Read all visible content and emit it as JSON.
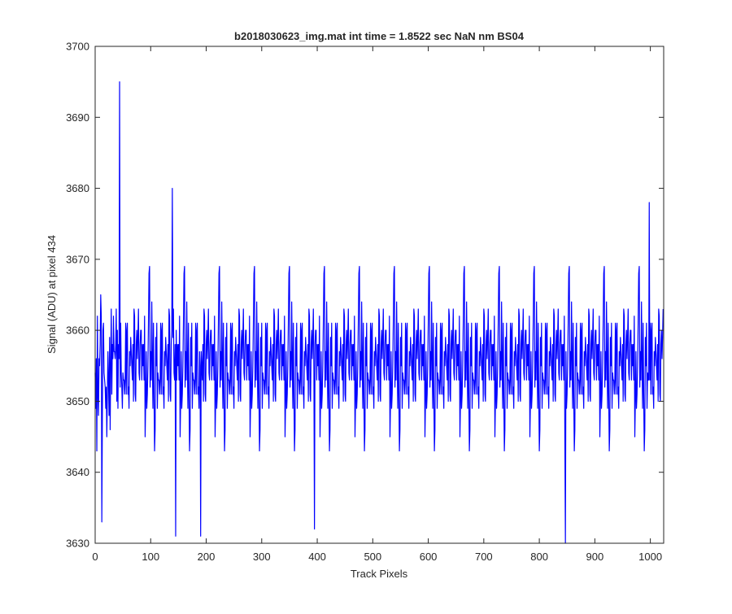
{
  "chart_data": {
    "type": "line",
    "title": "b2018030623_img.mat int time = 1.8522 sec  NaN nm BS04",
    "xlabel": "Track Pixels",
    "ylabel": "Signal (ADU) at pixel 434",
    "xlim": [
      0,
      1024
    ],
    "ylim": [
      3630,
      3700
    ],
    "xticks": [
      0,
      100,
      200,
      300,
      400,
      500,
      600,
      700,
      800,
      900,
      1000
    ],
    "yticks": [
      3630,
      3640,
      3650,
      3660,
      3670,
      3680,
      3690,
      3700
    ],
    "grid": false,
    "line_color": "#0000ff",
    "series_summary": {
      "points": 1024,
      "mean": 3655,
      "typical_range": [
        3638,
        3673
      ],
      "extremes": [
        {
          "x": 44,
          "y": 3695
        },
        {
          "x": 139,
          "y": 3680
        },
        {
          "x": 998,
          "y": 3678
        },
        {
          "x": 12,
          "y": 3633
        },
        {
          "x": 145,
          "y": 3631
        },
        {
          "x": 190,
          "y": 3631
        },
        {
          "x": 395,
          "y": 3632
        },
        {
          "x": 847,
          "y": 3630
        }
      ]
    }
  }
}
